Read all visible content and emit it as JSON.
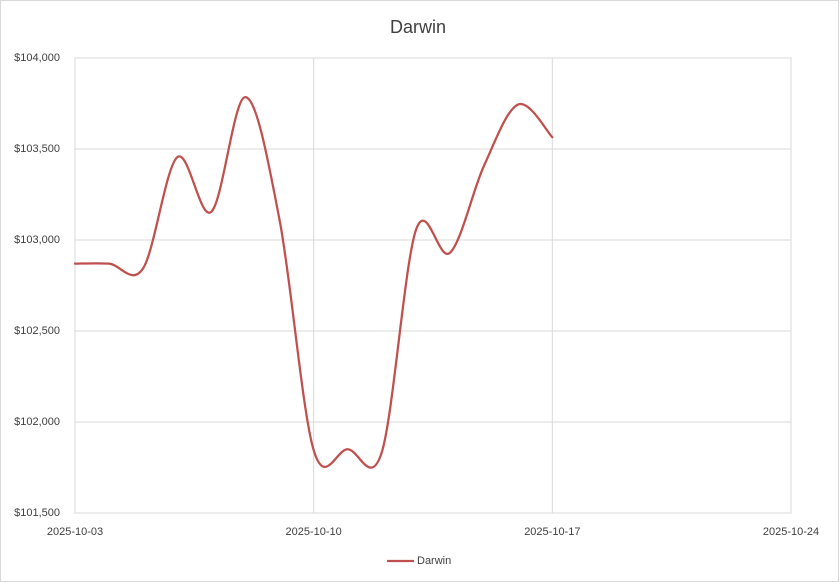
{
  "chart_data": {
    "type": "line",
    "title": "Darwin",
    "x": [
      "2025-10-03",
      "2025-10-04",
      "2025-10-05",
      "2025-10-06",
      "2025-10-07",
      "2025-10-08",
      "2025-10-09",
      "2025-10-10",
      "2025-10-11",
      "2025-10-12",
      "2025-10-13",
      "2025-10-14",
      "2025-10-15",
      "2025-10-16",
      "2025-10-17"
    ],
    "series": [
      {
        "name": "Darwin",
        "color": "#c0504d",
        "values": [
          102870,
          102870,
          102845,
          103455,
          103155,
          103785,
          103110,
          101845,
          101850,
          101835,
          103055,
          102930,
          103410,
          103745,
          103565
        ]
      }
    ],
    "smooth": true,
    "xlim": [
      "2025-10-03",
      "2025-10-24"
    ],
    "xticks": [
      "2025-10-03",
      "2025-10-10",
      "2025-10-17",
      "2025-10-24"
    ],
    "ylim": [
      101500,
      104000
    ],
    "yticks": [
      {
        "value": 101500,
        "label": "$101,500"
      },
      {
        "value": 102000,
        "label": "$102,000"
      },
      {
        "value": 102500,
        "label": "$102,500"
      },
      {
        "value": 103000,
        "label": "$103,000"
      },
      {
        "value": 103500,
        "label": "$103,500"
      },
      {
        "value": 104000,
        "label": "$104,000"
      }
    ],
    "grid": true,
    "legend": "bottom"
  }
}
